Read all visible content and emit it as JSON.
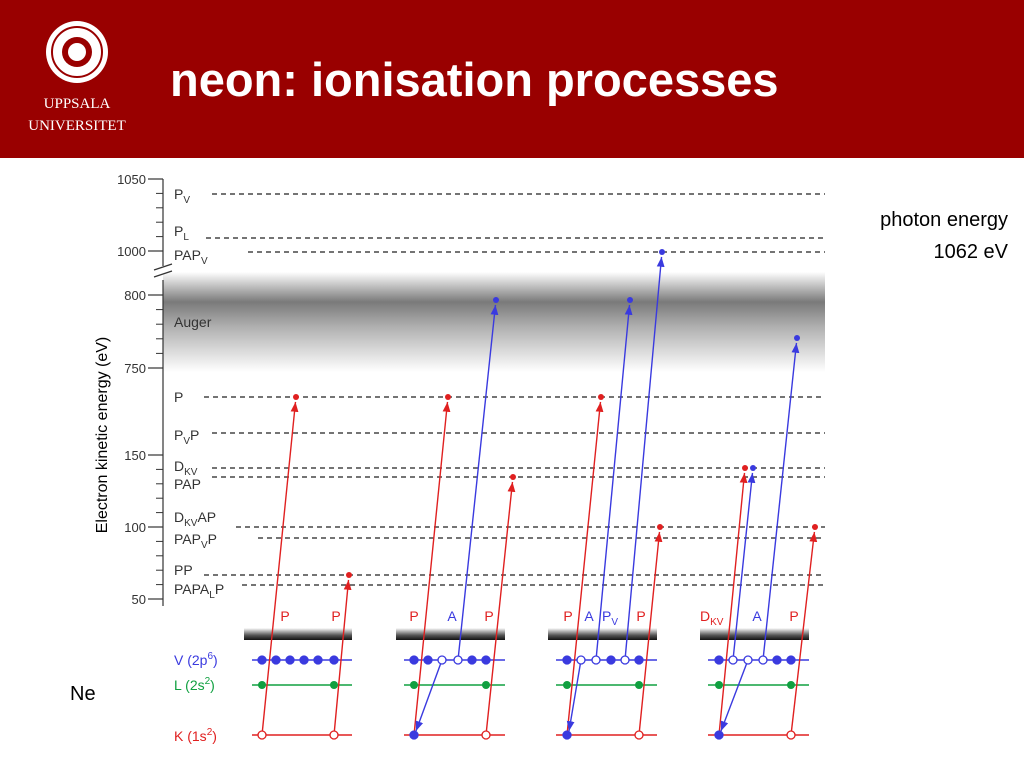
{
  "header": {
    "title": "neon: ionisation processes",
    "logo": [
      "UPPSALA",
      "UNIVERSITET"
    ]
  },
  "note": [
    "photon energy",
    "1062 eV"
  ],
  "axis": {
    "title": "Electron kinetic energy (eV)",
    "ticks": [
      1050,
      1000,
      800,
      750,
      150,
      100,
      50
    ]
  },
  "band_label": "Auger",
  "levels": [
    {
      "label": "P",
      "sub": "V"
    },
    {
      "label": "P",
      "sub": "L"
    },
    {
      "label": "PAP",
      "sub": "V"
    },
    {
      "label": "P"
    },
    {
      "label": "P",
      "sub": "V",
      "after": "P"
    },
    {
      "label": "D",
      "sub": "KV"
    },
    {
      "label": "PAP"
    },
    {
      "label": "D",
      "sub": "KV",
      "after": "AP"
    },
    {
      "label": "PAP",
      "sub": "V",
      "after": "P"
    },
    {
      "label": "PP"
    },
    {
      "label": "PAPA",
      "sub": "L",
      "after": "P"
    }
  ],
  "atom": "Ne",
  "orbitals": [
    {
      "label": "V (2p",
      "sup": "6",
      "after": ")"
    },
    {
      "label": "L (2s",
      "sup": "2",
      "after": ")"
    },
    {
      "label": "K (1s",
      "sup": "2",
      "after": ")"
    }
  ],
  "groups": [
    {
      "labels": [
        {
          "label": "P"
        },
        {
          "label": "P"
        }
      ]
    },
    {
      "labels": [
        {
          "label": "P"
        },
        {
          "label": "A"
        },
        {
          "label": "P"
        }
      ]
    },
    {
      "labels": [
        {
          "label": "P"
        },
        {
          "label": "A"
        },
        {
          "label": "P",
          "sub": "V"
        },
        {
          "label": "P"
        }
      ]
    },
    {
      "labels": [
        {
          "label": "D",
          "sub": "KV"
        },
        {
          "label": "A"
        },
        {
          "label": "P"
        }
      ]
    }
  ]
}
